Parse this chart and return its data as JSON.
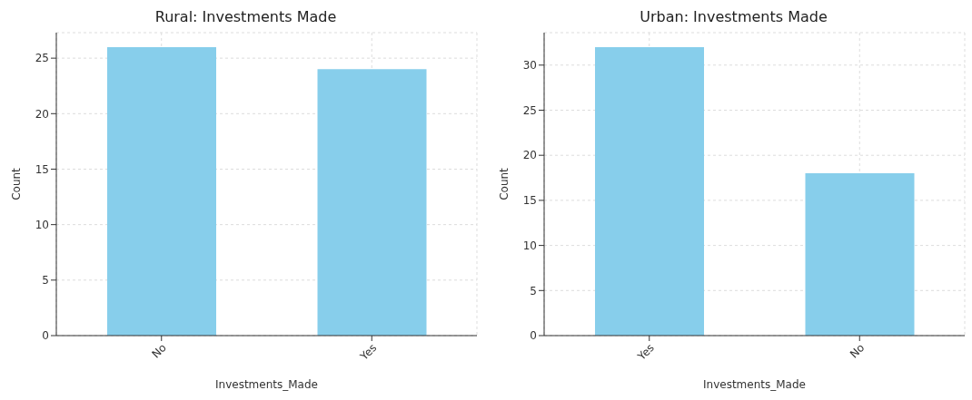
{
  "chart_data": [
    {
      "type": "bar",
      "title": "Rural: Investments Made",
      "xlabel": "Investments_Made",
      "ylabel": "Count",
      "categories": [
        "No",
        "Yes"
      ],
      "values": [
        26,
        24
      ],
      "color": "#87ceeb",
      "ylim": [
        0,
        27.3
      ],
      "yticks": [
        0,
        5,
        10,
        15,
        20,
        25
      ],
      "grid": true
    },
    {
      "type": "bar",
      "title": "Urban: Investments Made",
      "xlabel": "Investments_Made",
      "ylabel": "Count",
      "categories": [
        "Yes",
        "No"
      ],
      "values": [
        32,
        18
      ],
      "color": "#87ceeb",
      "ylim": [
        0,
        33.6
      ],
      "yticks": [
        0,
        5,
        10,
        15,
        20,
        25,
        30
      ],
      "grid": true
    }
  ]
}
